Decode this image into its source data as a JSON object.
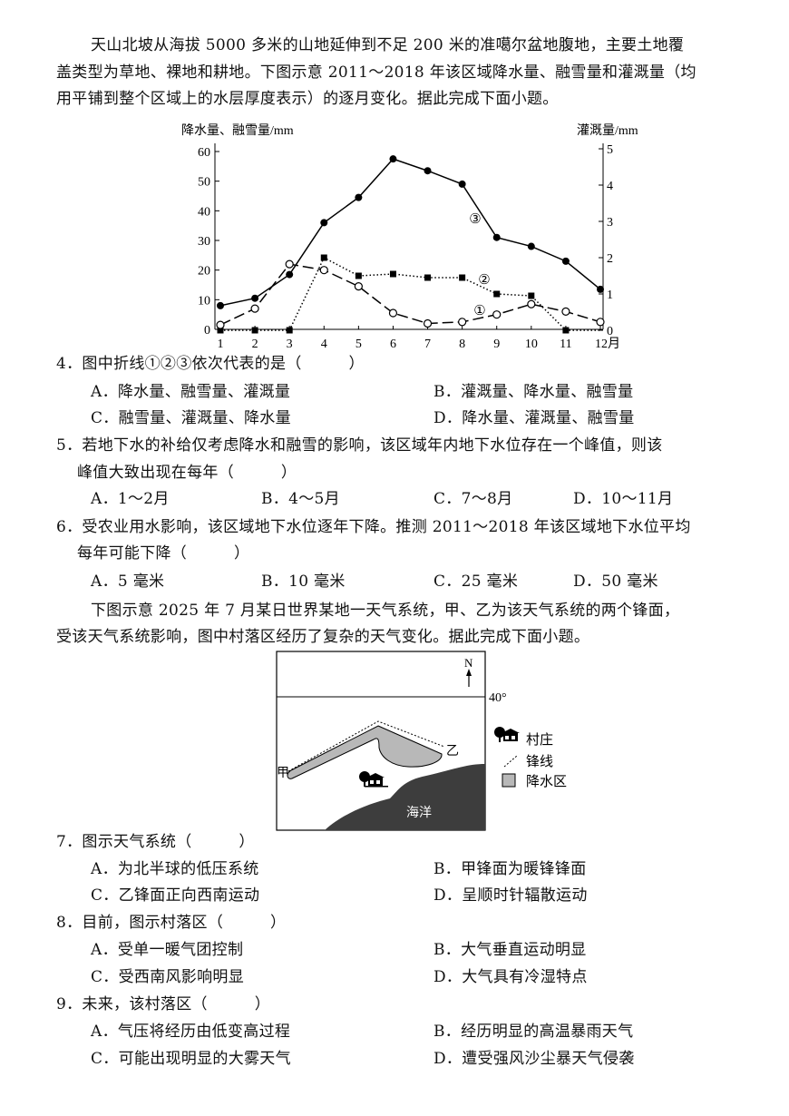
{
  "intro1": {
    "lines": [
      "天山北坡从海拔 5000 多米的山地延伸到不足 200 米的准噶尔盆地腹地，主要土地覆",
      "盖类型为草地、裸地和耕地。下图示意 2011～2018 年该区域降水量、融雪量和灌溉量（均",
      "用平铺到整个区域上的水层厚度表示）的逐月变化。据此完成下面小题。"
    ]
  },
  "chart_data": {
    "type": "line",
    "left_ylabel": "降水量、融雪量/mm",
    "right_ylabel": "灌溉量/mm",
    "x_ticks": [
      "1",
      "2",
      "3",
      "4",
      "5",
      "6",
      "7",
      "8",
      "9",
      "10",
      "11",
      "12月"
    ],
    "x": [
      1,
      2,
      3,
      4,
      5,
      6,
      7,
      8,
      9,
      10,
      11,
      12
    ],
    "left_ylim": [
      0,
      60
    ],
    "left_yticks": [
      "0",
      "10",
      "20",
      "30",
      "40",
      "50",
      "60"
    ],
    "right_ylim": [
      0,
      5
    ],
    "right_yticks": [
      "0",
      "1",
      "2",
      "3",
      "4",
      "5"
    ],
    "grid": false,
    "series": [
      {
        "name": "③",
        "axis": "left",
        "style": "solid, filled circles",
        "values": [
          8,
          10.5,
          18.5,
          36,
          44.5,
          57.5,
          53.5,
          49,
          31,
          28,
          23,
          13.5
        ]
      },
      {
        "name": "②",
        "axis": "right",
        "style": "dotted, filled squares",
        "values": [
          0,
          0,
          0,
          2.0,
          1.5,
          1.55,
          1.45,
          1.45,
          1.0,
          0.95,
          0,
          0
        ]
      },
      {
        "name": "①",
        "axis": "left",
        "style": "dashed, open circles",
        "values": [
          1.5,
          7,
          22,
          20,
          14.5,
          5.5,
          2,
          2.5,
          5,
          8.5,
          6,
          2.5
        ]
      }
    ]
  },
  "questions1": [
    {
      "lines": [
        "4．图中折线①②③依次代表的是（　　　）"
      ],
      "options": [
        [
          "A．降水量、融雪量、灌溉量",
          "B．灌溉量、降水量、融雪量"
        ],
        [
          "C．融雪量、灌溉量、降水量",
          "D．降水量、灌溉量、融雪量"
        ]
      ],
      "layout": "2col"
    },
    {
      "lines": [
        "5．若地下水的补给仅考虑降水和融雪的影响，该区域年内地下水位存在一个峰值，则该",
        "　 峰值大致出现在每年（　　　）"
      ],
      "options": [
        [
          "A．1～2月",
          "B．4～5月",
          "C．7～8月",
          "D．10～11月"
        ]
      ],
      "layout": "4col"
    },
    {
      "lines": [
        "6．受农业用水影响，该区域地下水位逐年下降。推测 2011～2018 年该区域地下水位平均",
        "　 每年可能下降（　　　）"
      ],
      "options": [
        [
          "A．5 毫米",
          "B．10 毫米",
          "C．25 毫米",
          "D．50 毫米"
        ]
      ],
      "layout": "4col"
    }
  ],
  "intro2": {
    "lines": [
      "下图示意 2025 年 7 月某日世界某地一天气系统，甲、乙为该天气系统的两个锋面，",
      "受该天气系统影响，图中村落区经历了复杂的天气变化。据此完成下面小题。"
    ]
  },
  "diagram": {
    "north": "N",
    "latitude": "40°",
    "front_jia": "甲",
    "front_yi": "乙",
    "ocean": "海洋",
    "legend": {
      "village": "村庄",
      "front": "锋线",
      "precip": "降水区"
    },
    "colors": {
      "precip": "#b8b8b8",
      "ocean": "#3d3d3d"
    }
  },
  "questions2": [
    {
      "lines": [
        "7．图示天气系统（　　　）"
      ],
      "options": [
        [
          "A．为北半球的低压系统",
          "B．甲锋面为暖锋锋面"
        ],
        [
          "C．乙锋面正向西南运动",
          "D．呈顺时针辐散运动"
        ]
      ],
      "layout": "2col"
    },
    {
      "lines": [
        "8．目前，图示村落区（　　　）"
      ],
      "options": [
        [
          "A．受单一暖气团控制",
          "B．大气垂直运动明显"
        ],
        [
          "C．受西南风影响明显",
          "D．大气具有冷湿特点"
        ]
      ],
      "layout": "2col"
    },
    {
      "lines": [
        "9．未来，该村落区（　　　）"
      ],
      "options": [
        [
          "A．气压将经历由低变高过程",
          "B．经历明显的高温暴雨天气"
        ],
        [
          "C．可能出现明显的大雾天气",
          "D．遭受强风沙尘暴天气侵袭"
        ]
      ],
      "layout": "2col"
    }
  ]
}
